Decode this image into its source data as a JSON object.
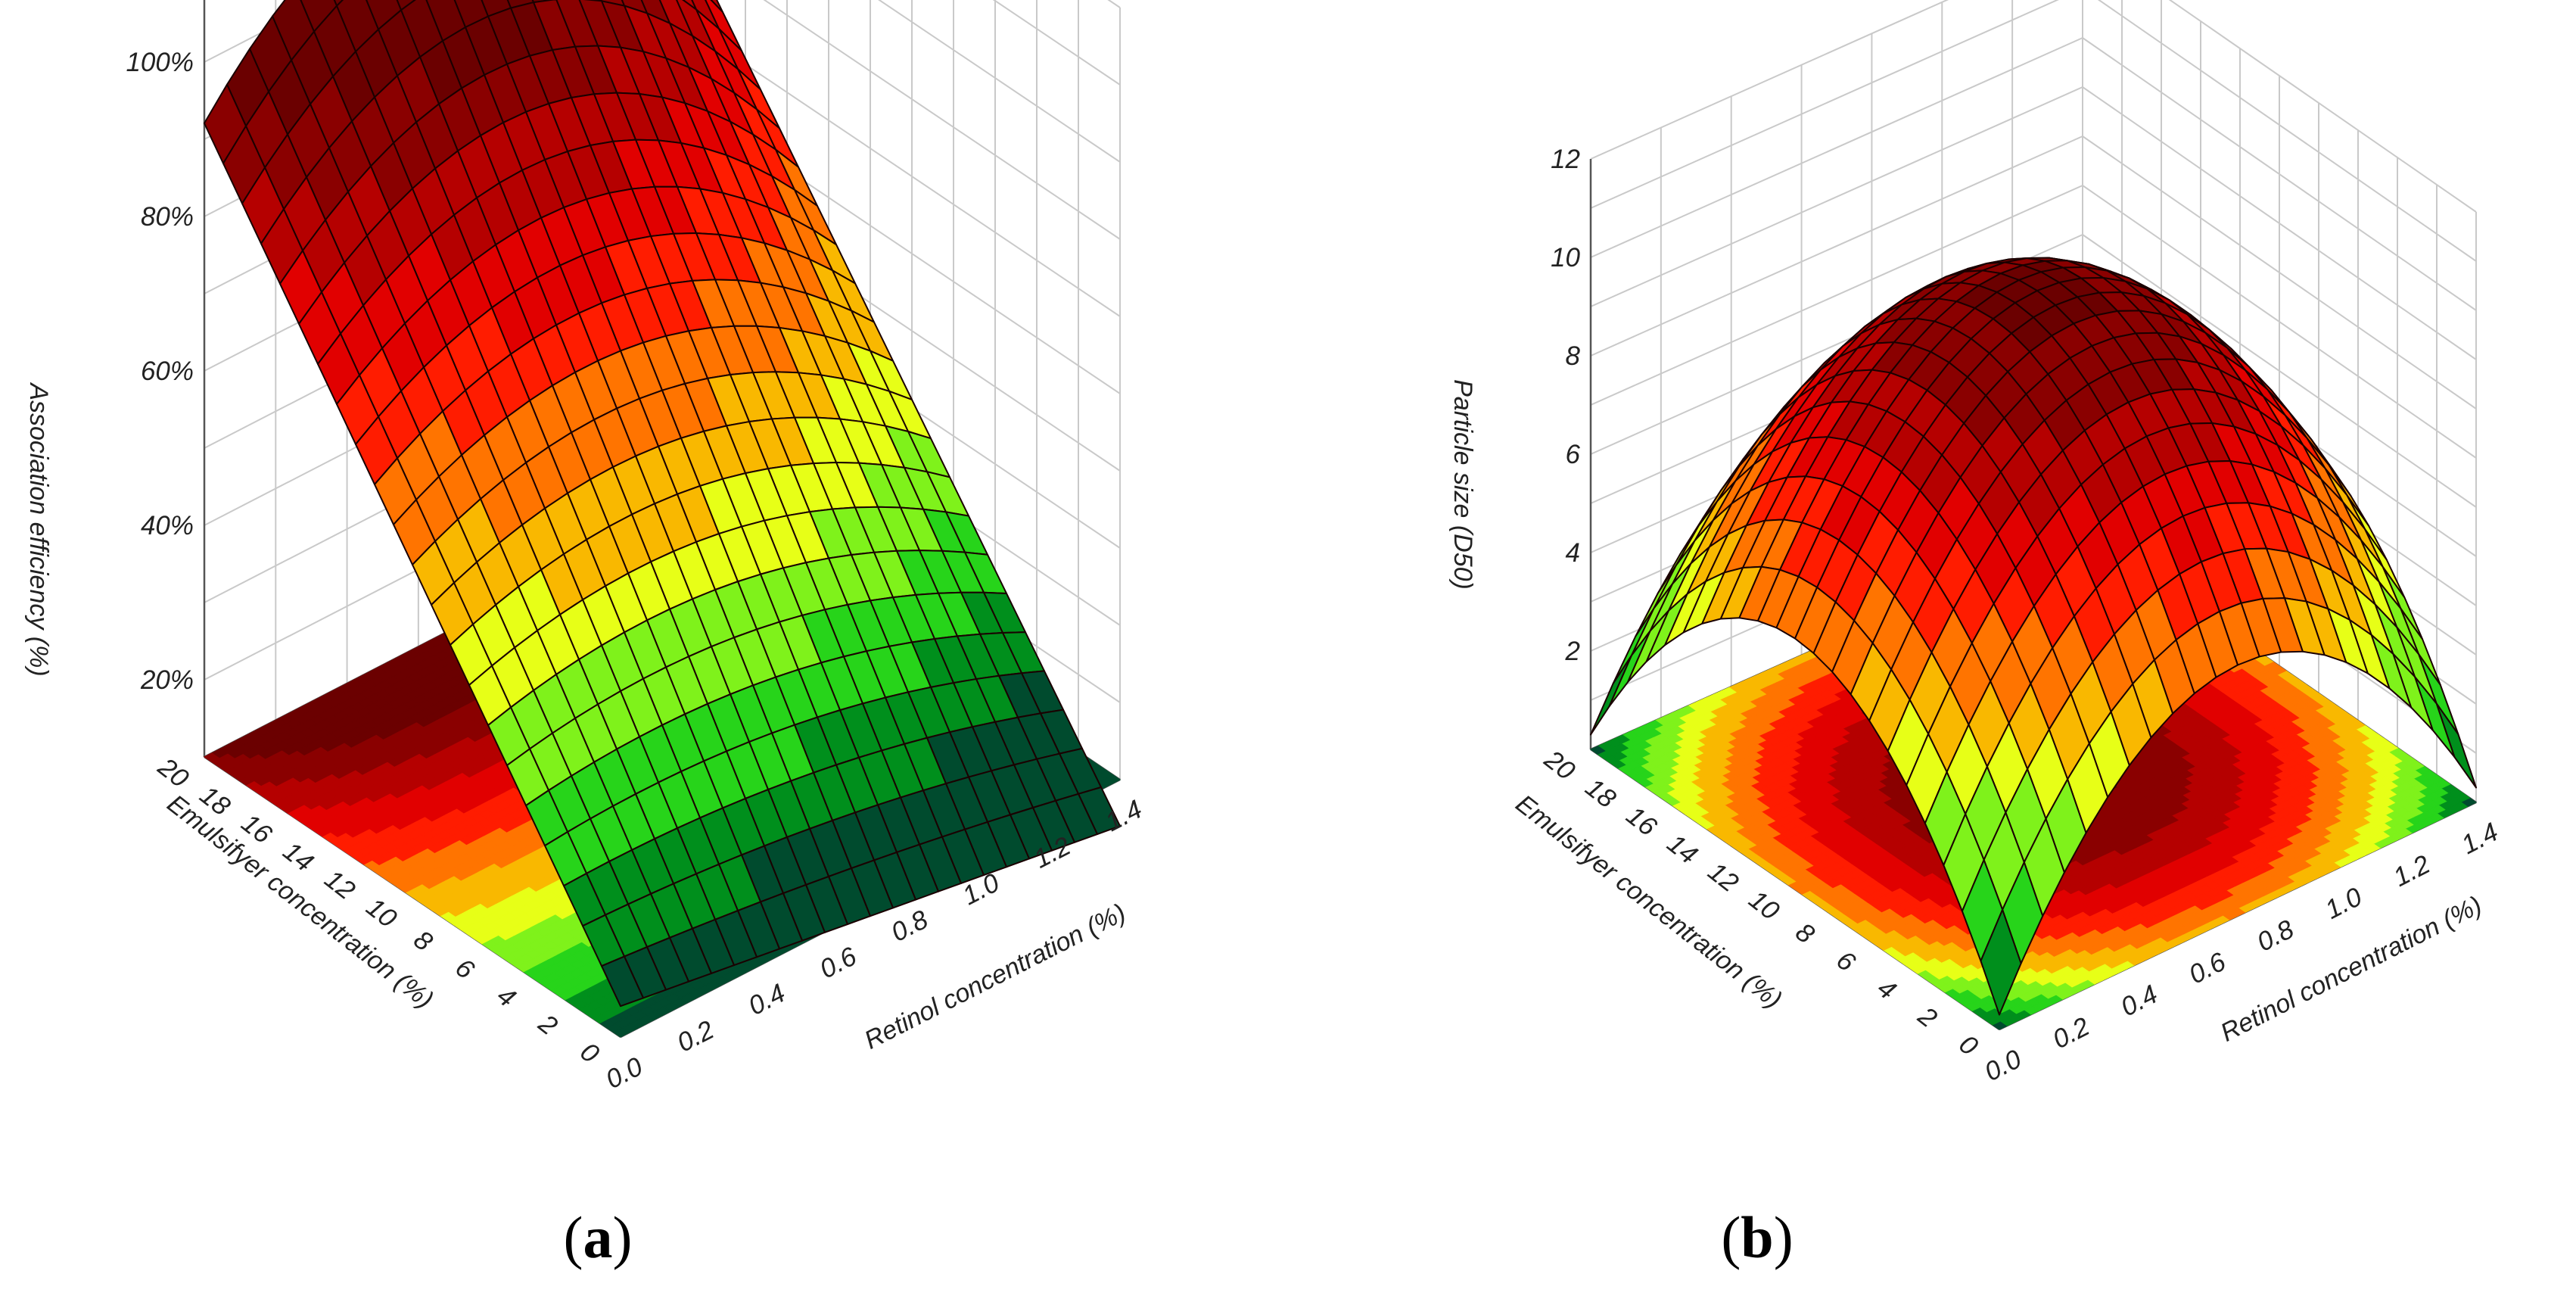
{
  "chart_data": [
    {
      "type": "surface3d",
      "panel_label": "a",
      "xlabel": "Retinol concentration (%)",
      "ylabel": "Emulsifyer concentration (%)",
      "zlabel": "Association efficiency (%)",
      "x_ticks": [
        "0.0",
        "0.2",
        "0.4",
        "0.6",
        "0.8",
        "1.0",
        "1.2",
        "1.4"
      ],
      "y_ticks": [
        "0",
        "2",
        "4",
        "6",
        "8",
        "10",
        "12",
        "14",
        "16",
        "18",
        "20"
      ],
      "z_ticks": [
        "20%",
        "40%",
        "60%",
        "80%",
        "100%"
      ],
      "xlim": [
        0,
        1.4
      ],
      "ylim": [
        0,
        20
      ],
      "zlim": [
        10,
        110
      ],
      "surface_samples": [
        {
          "x": 0.0,
          "y": 0,
          "z": 16
        },
        {
          "x": 1.4,
          "y": 0,
          "z": 13
        },
        {
          "x": 0.0,
          "y": 20,
          "z": 78
        },
        {
          "x": 0.7,
          "y": 20,
          "z": 99
        },
        {
          "x": 1.4,
          "y": 20,
          "z": 75
        },
        {
          "x": 0.7,
          "y": 10,
          "z": 68
        }
      ],
      "colormap": [
        "#004b2e",
        "#008f1c",
        "#27d41a",
        "#7ff21b",
        "#e7ff17",
        "#f9b800",
        "#ff7400",
        "#ff1c00",
        "#e10000",
        "#b50000",
        "#8a0000",
        "#6b0000"
      ],
      "grid": true
    },
    {
      "type": "surface3d",
      "panel_label": "b",
      "xlabel": "Retinol concentration (%)",
      "ylabel": "Emulsifyer concentration (%)",
      "zlabel": "Particle size (D50)",
      "x_ticks": [
        "0.0",
        "0.2",
        "0.4",
        "0.6",
        "0.8",
        "1.0",
        "1.2",
        "1.4"
      ],
      "y_ticks": [
        "0",
        "2",
        "4",
        "6",
        "8",
        "10",
        "12",
        "14",
        "16",
        "18",
        "20"
      ],
      "z_ticks": [
        "2",
        "4",
        "6",
        "8",
        "10",
        "12"
      ],
      "xlim": [
        0,
        1.4
      ],
      "ylim": [
        0,
        20
      ],
      "zlim": [
        0,
        12
      ],
      "surface_samples": [
        {
          "x": 0.0,
          "y": 0,
          "z": 0.3
        },
        {
          "x": 1.4,
          "y": 0,
          "z": 0.3
        },
        {
          "x": 0.0,
          "y": 20,
          "z": 0.3
        },
        {
          "x": 1.4,
          "y": 20,
          "z": 0.3
        },
        {
          "x": 0.7,
          "y": 10,
          "z": 9.8
        }
      ],
      "colormap": [
        "#004b2e",
        "#008f1c",
        "#27d41a",
        "#7ff21b",
        "#e7ff17",
        "#f9b800",
        "#ff7400",
        "#ff1c00",
        "#e10000",
        "#b50000",
        "#8a0000",
        "#6b0000"
      ],
      "grid": true
    }
  ]
}
